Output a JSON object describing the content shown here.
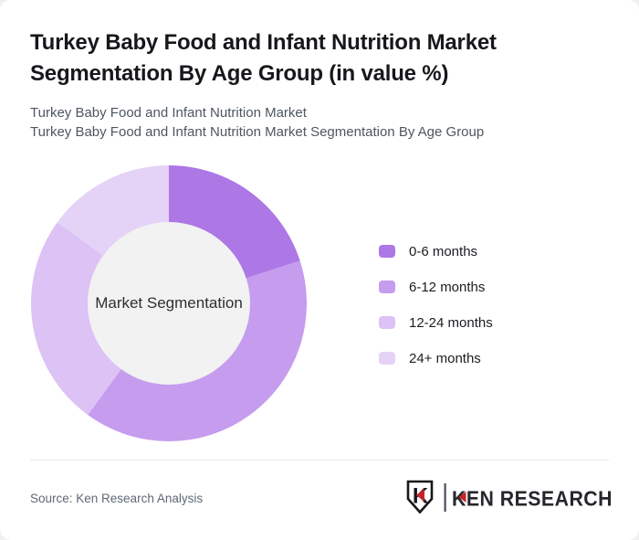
{
  "page": {
    "background": "#eef0f2",
    "card_background": "#ffffff"
  },
  "header": {
    "title": "Turkey Baby Food and Infant Nutrition Market Segmentation By Age Group (in value %)",
    "subtitle_line1": "Turkey Baby Food and Infant Nutrition Market",
    "subtitle_line2": "Turkey Baby Food and Infant Nutrition Market Segmentation By Age Group"
  },
  "chart_data": {
    "type": "pie",
    "subtype": "donut",
    "title": "Turkey Baby Food and Infant Nutrition Market Segmentation By Age Group (in value %)",
    "center_label": "Market Segmentation",
    "categories": [
      "0-6 months",
      "6-12 months",
      "12-24 months",
      "24+ months"
    ],
    "values": [
      20,
      40,
      25,
      15
    ],
    "unit": "%",
    "values_estimated_from_arc_angles": true,
    "colors": [
      "#ad77e6",
      "#c59cee",
      "#dcc2f5",
      "#e4d2f7"
    ],
    "hole_color": "#f2f2f2",
    "start_angle_deg": 0,
    "direction": "clockwise",
    "legend_position": "right",
    "data_labels_shown": false
  },
  "footer": {
    "source": "Source: Ken Research Analysis",
    "logo": {
      "monogram": "K",
      "text": "KEN RESEARCH",
      "accent_color": "#c8222a",
      "text_color": "#26272c"
    }
  }
}
